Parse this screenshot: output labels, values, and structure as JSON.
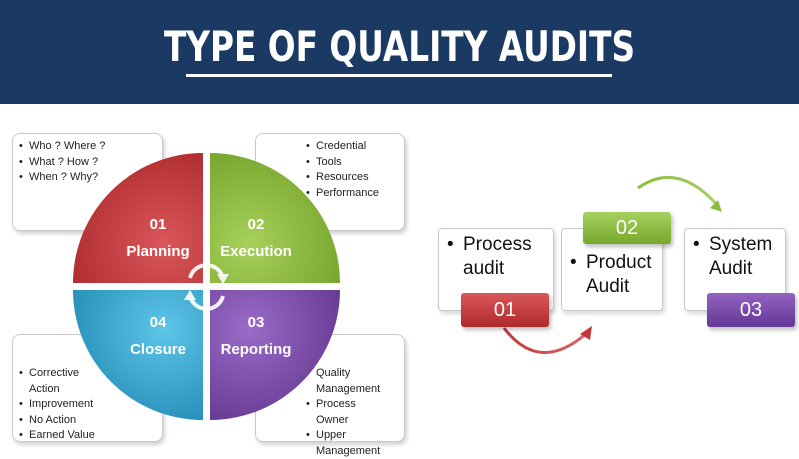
{
  "header": {
    "title": "TYPE OF QUALITY AUDITS"
  },
  "colors": {
    "banner": "#1b3a63",
    "planning": "#c0383a",
    "execution": "#8bbd3a",
    "closure": "#2e9fc9",
    "reporting": "#7b4aa8"
  },
  "quadrants": {
    "planning": {
      "number": "01",
      "label": "Planning"
    },
    "execution": {
      "number": "02",
      "label": "Execution"
    },
    "closure": {
      "number": "04",
      "label": "Closure"
    },
    "reporting": {
      "number": "03",
      "label": "Reporting"
    }
  },
  "callouts": {
    "planning": [
      "Who ? Where ?",
      "What ? How ?",
      "When ? Why?"
    ],
    "execution": [
      "Credential",
      "Tools",
      "Resources",
      "Performance"
    ],
    "closure": [
      "Corrective Action",
      "Improvement",
      "No Action",
      "Earned Value"
    ],
    "reporting": [
      "Quality Management",
      "Process Owner",
      "Upper Management"
    ]
  },
  "flow": {
    "process": {
      "label_line1": "Process",
      "label_line2": "audit",
      "number": "01"
    },
    "product": {
      "label_line1": "Product",
      "label_line2": "Audit",
      "number": "02"
    },
    "system": {
      "label_line1": "System",
      "label_line2": "Audit",
      "number": "03"
    }
  },
  "icons": [
    "cycle-arrows-icon",
    "curved-arrow-icon"
  ]
}
